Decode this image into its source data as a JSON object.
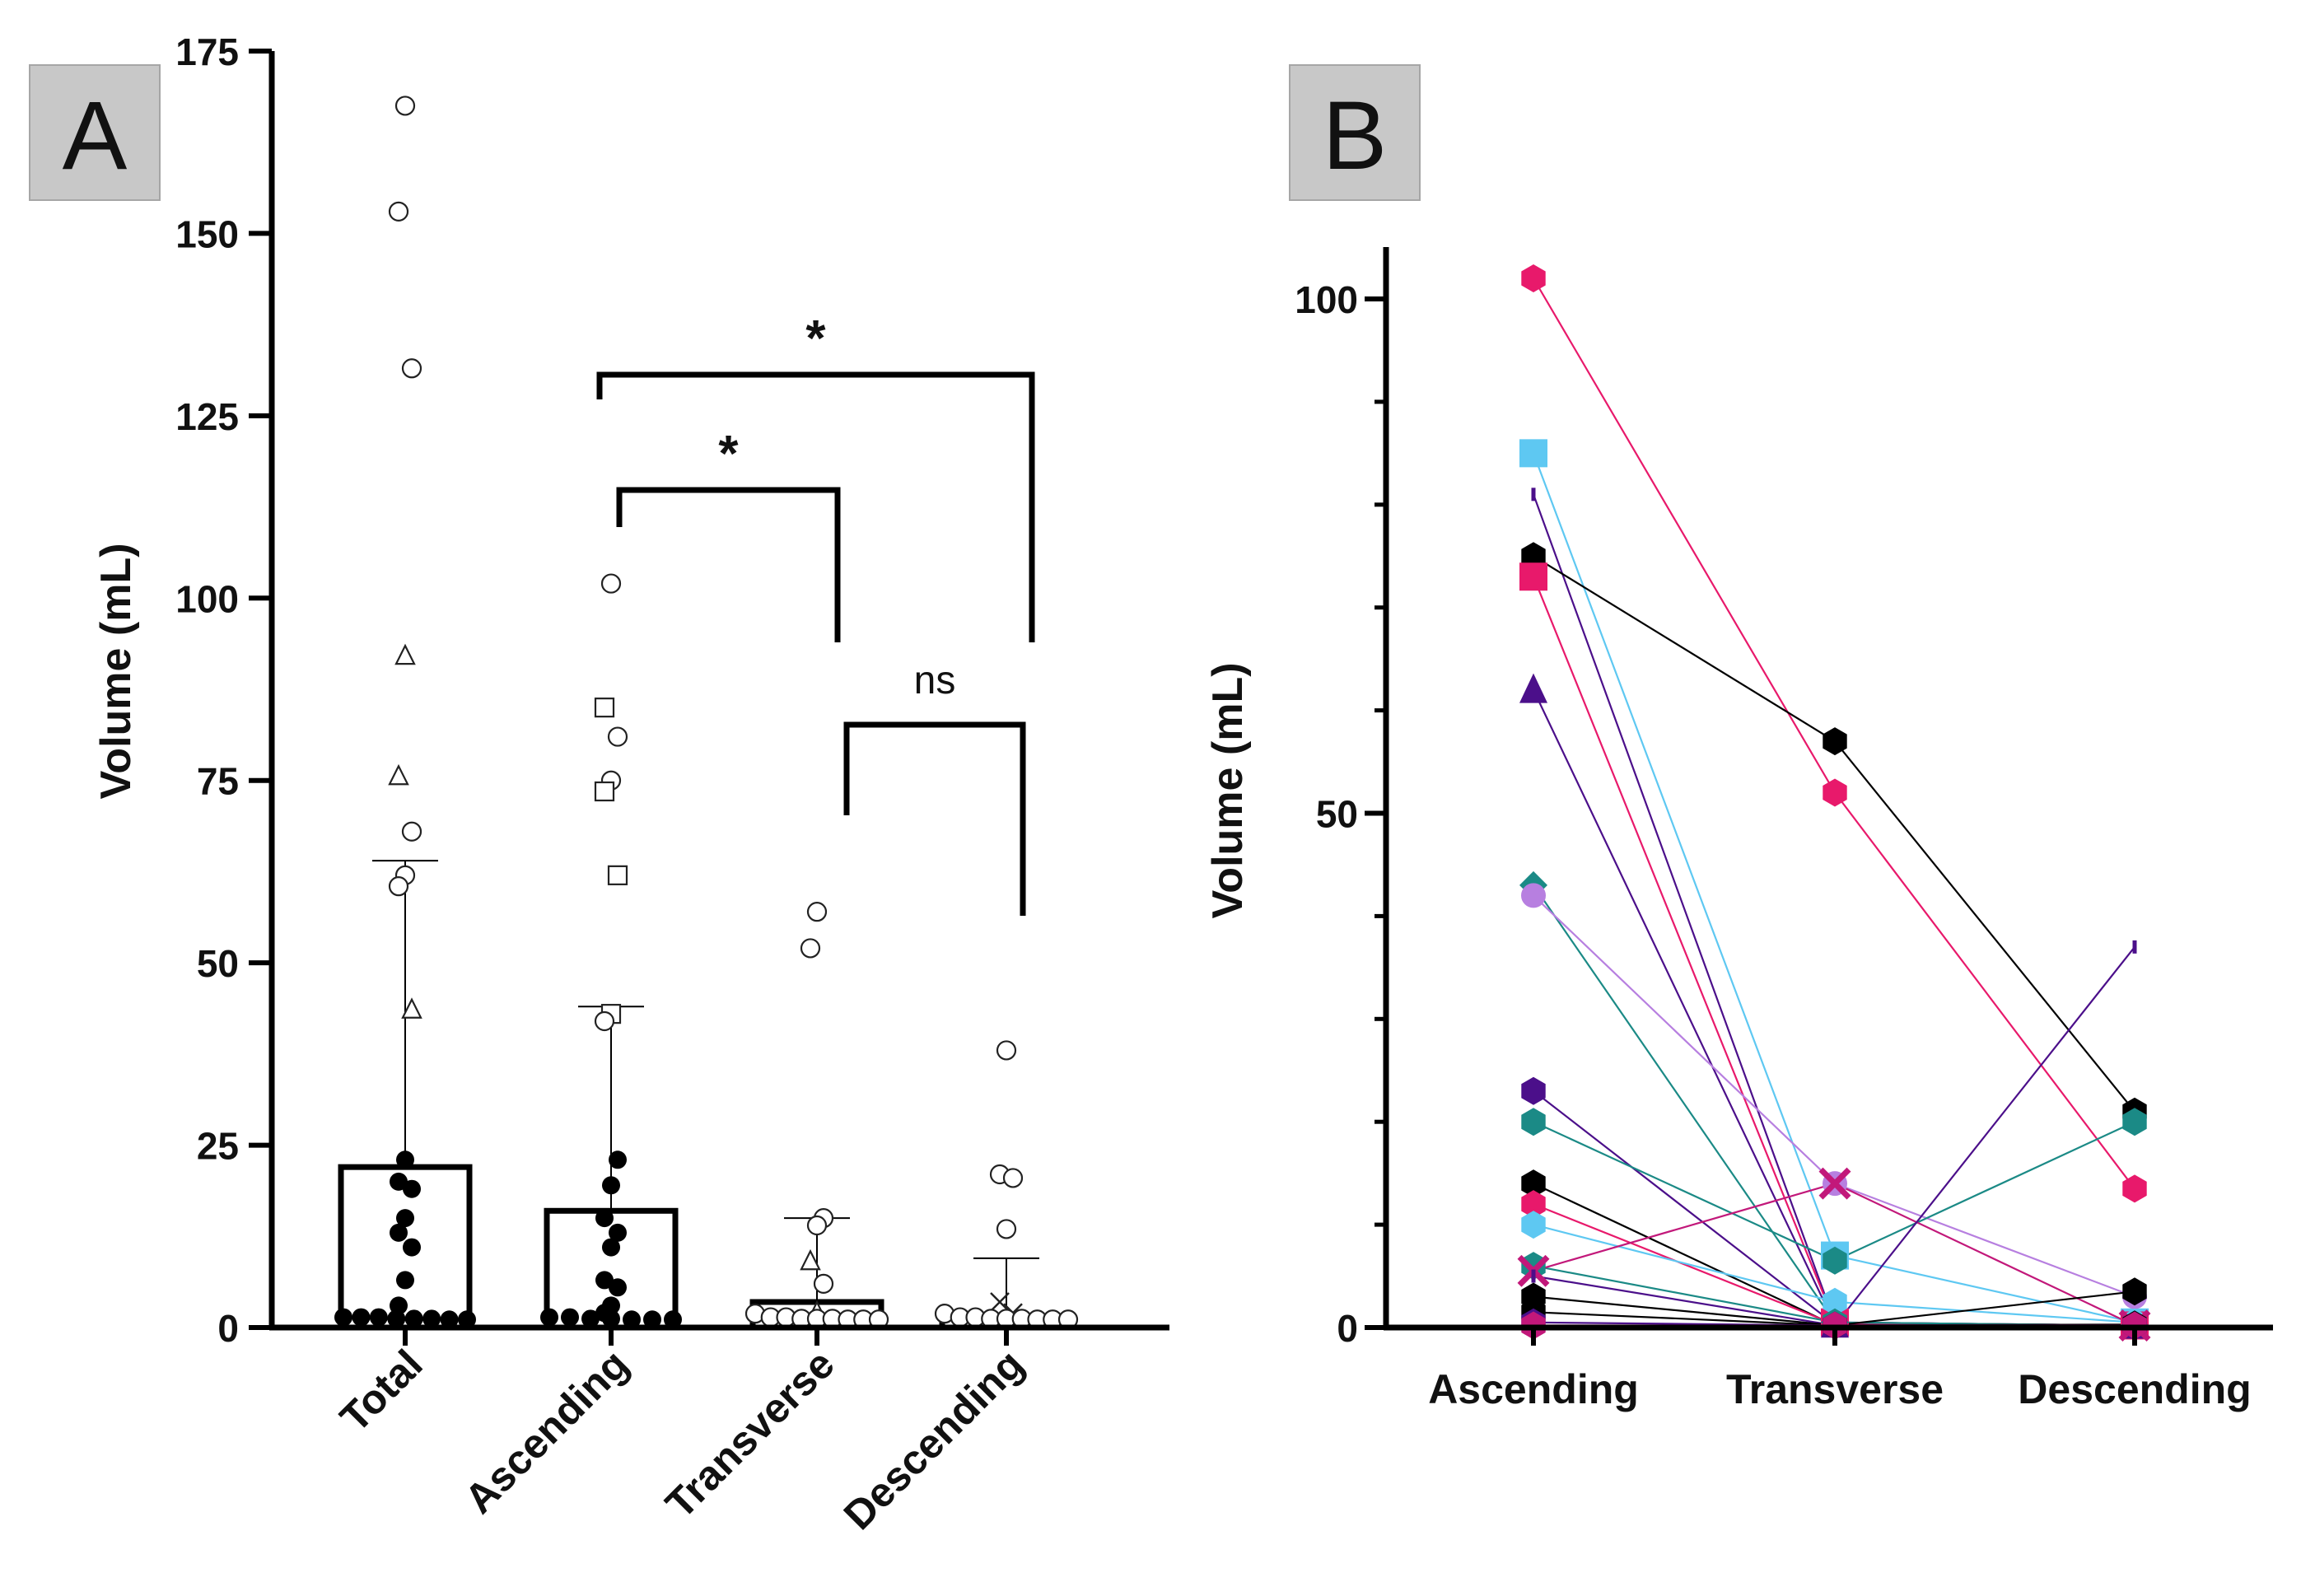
{
  "colors": {
    "axis": "#000000",
    "label_box": "#c8c8c8",
    "pink": "#e8196b",
    "light_blue": "#5ec8f2",
    "purple": "#4b0f8a",
    "teal": "#1b8a86",
    "black": "#000000",
    "violet": "#b77fe0",
    "magenta": "#c2187a"
  },
  "panels": {
    "a": {
      "label": "A"
    },
    "b": {
      "label": "B"
    }
  },
  "chart_data": [
    {
      "panel": "A",
      "type": "bar",
      "ylabel": "Volume (mL)",
      "ylim": [
        0,
        175
      ],
      "yticks": [
        "0",
        "25",
        "50",
        "75",
        "100",
        "125",
        "150",
        "175"
      ],
      "categories": [
        "Total",
        "Ascending",
        "Transverse",
        "Descending"
      ],
      "means": [
        22,
        16,
        3.5,
        1.5
      ],
      "sd_upper": [
        64,
        44,
        15,
        9.5
      ],
      "points": [
        [
          {
            "v": 167.5,
            "s": "circle"
          },
          {
            "v": 153,
            "s": "circle"
          },
          {
            "v": 131.5,
            "s": "circle"
          },
          {
            "v": 92,
            "s": "triangle"
          },
          {
            "v": 75.5,
            "s": "triangle"
          },
          {
            "v": 68,
            "s": "circle"
          },
          {
            "v": 62,
            "s": "circle"
          },
          {
            "v": 60.5,
            "s": "circle"
          },
          {
            "v": 43.5,
            "s": "triangle"
          },
          {
            "v": 23,
            "s": "dot"
          },
          {
            "v": 20,
            "s": "dot"
          },
          {
            "v": 19,
            "s": "dot"
          },
          {
            "v": 15,
            "s": "dot"
          },
          {
            "v": 13,
            "s": "dot"
          },
          {
            "v": 11,
            "s": "dot"
          },
          {
            "v": 6.5,
            "s": "dot"
          },
          {
            "v": 3,
            "s": "dot"
          },
          {
            "v": 0.5,
            "s": "dot"
          },
          {
            "v": 0.5,
            "s": "dot"
          },
          {
            "v": 0.5,
            "s": "dot"
          },
          {
            "v": 0.3,
            "s": "dot"
          },
          {
            "v": 0.3,
            "s": "dot"
          },
          {
            "v": 0.3,
            "s": "dot"
          },
          {
            "v": 0.2,
            "s": "dot"
          },
          {
            "v": 0.2,
            "s": "dot"
          }
        ],
        [
          {
            "v": 102,
            "s": "circle"
          },
          {
            "v": 85,
            "s": "square"
          },
          {
            "v": 81,
            "s": "circle"
          },
          {
            "v": 75,
            "s": "circle"
          },
          {
            "v": 73.5,
            "s": "square"
          },
          {
            "v": 62,
            "s": "square"
          },
          {
            "v": 43,
            "s": "square"
          },
          {
            "v": 42,
            "s": "circle"
          },
          {
            "v": 23,
            "s": "dot"
          },
          {
            "v": 19.5,
            "s": "dot"
          },
          {
            "v": 15,
            "s": "dot"
          },
          {
            "v": 13,
            "s": "dot"
          },
          {
            "v": 11,
            "s": "dot"
          },
          {
            "v": 6.5,
            "s": "dot"
          },
          {
            "v": 5.5,
            "s": "dot"
          },
          {
            "v": 3,
            "s": "dot"
          },
          {
            "v": 2,
            "s": "dot"
          },
          {
            "v": 0.5,
            "s": "dot"
          },
          {
            "v": 0.5,
            "s": "dot"
          },
          {
            "v": 0.3,
            "s": "dot"
          },
          {
            "v": 0.3,
            "s": "dot"
          },
          {
            "v": 0.2,
            "s": "dot"
          },
          {
            "v": 0.2,
            "s": "dot"
          },
          {
            "v": 0.2,
            "s": "dot"
          }
        ],
        [
          {
            "v": 57,
            "s": "circle"
          },
          {
            "v": 52,
            "s": "circle"
          },
          {
            "v": 15,
            "s": "circle"
          },
          {
            "v": 14,
            "s": "circle"
          },
          {
            "v": 9,
            "s": "triangle"
          },
          {
            "v": 6,
            "s": "circle"
          },
          {
            "v": 2,
            "s": "triangle"
          },
          {
            "v": 1,
            "s": "circle"
          },
          {
            "v": 0.5,
            "s": "circle"
          },
          {
            "v": 0.5,
            "s": "circle"
          },
          {
            "v": 0.3,
            "s": "circle"
          },
          {
            "v": 0.3,
            "s": "circle"
          },
          {
            "v": 0.3,
            "s": "circle"
          },
          {
            "v": 0.2,
            "s": "circle"
          },
          {
            "v": 0.2,
            "s": "circle"
          },
          {
            "v": 0.2,
            "s": "circle"
          }
        ],
        [
          {
            "v": 38,
            "s": "circle"
          },
          {
            "v": 21,
            "s": "circle"
          },
          {
            "v": 20.5,
            "s": "circle"
          },
          {
            "v": 13.5,
            "s": "circle"
          },
          {
            "v": 3.5,
            "s": "cross"
          },
          {
            "v": 2,
            "s": "cross"
          },
          {
            "v": 1,
            "s": "circle"
          },
          {
            "v": 0.5,
            "s": "circle"
          },
          {
            "v": 0.5,
            "s": "circle"
          },
          {
            "v": 0.3,
            "s": "circle"
          },
          {
            "v": 0.3,
            "s": "circle"
          },
          {
            "v": 0.3,
            "s": "circle"
          },
          {
            "v": 0.2,
            "s": "circle"
          },
          {
            "v": 0.2,
            "s": "circle"
          },
          {
            "v": 0.2,
            "s": "circle"
          }
        ]
      ],
      "significance": [
        {
          "from": "Ascending",
          "to": "Descending",
          "label": "*",
          "height": 130
        },
        {
          "from": "Ascending",
          "to": "Transverse",
          "label": "*",
          "height": 115
        },
        {
          "from": "Transverse",
          "to": "Descending",
          "label": "ns",
          "height": 83
        }
      ]
    },
    {
      "panel": "B",
      "type": "line",
      "ylabel": "Volume (mL)",
      "ylim": [
        0,
        105
      ],
      "yticks": [
        "0",
        "50",
        "100"
      ],
      "categories": [
        "Ascending",
        "Transverse",
        "Descending"
      ],
      "series": [
        {
          "color": "pink",
          "marker": "hexagon",
          "values": [
            102,
            52,
            13.5
          ]
        },
        {
          "color": "light_blue",
          "marker": "square",
          "values": [
            85,
            7,
            0.5
          ]
        },
        {
          "color": "purple",
          "marker": "tick",
          "values": [
            81,
            0.5,
            0.2
          ]
        },
        {
          "color": "black",
          "marker": "hexagon",
          "values": [
            75,
            57,
            21
          ]
        },
        {
          "color": "pink",
          "marker": "square",
          "values": [
            73,
            0.5,
            0.2
          ]
        },
        {
          "color": "purple",
          "marker": "triangle",
          "values": [
            62,
            0.3,
            0.2
          ]
        },
        {
          "color": "teal",
          "marker": "diamond",
          "values": [
            43,
            0.5,
            0.2
          ]
        },
        {
          "color": "violet",
          "marker": "circle",
          "values": [
            42,
            14,
            3
          ]
        },
        {
          "color": "purple",
          "marker": "hexagon",
          "values": [
            23,
            0.3,
            0.2
          ]
        },
        {
          "color": "teal",
          "marker": "hexagon",
          "values": [
            20,
            6.5,
            20
          ]
        },
        {
          "color": "black",
          "marker": "hexagon",
          "values": [
            14,
            0.2,
            0.2
          ]
        },
        {
          "color": "pink",
          "marker": "hexagon",
          "values": [
            12,
            0.3,
            0.2
          ]
        },
        {
          "color": "light_blue",
          "marker": "hexagon",
          "values": [
            10,
            2.5,
            0.5
          ]
        },
        {
          "color": "teal",
          "marker": "hexagon",
          "values": [
            6,
            0.5,
            0.2
          ]
        },
        {
          "color": "magenta",
          "marker": "cross",
          "values": [
            5.5,
            14,
            0.2
          ]
        },
        {
          "color": "purple",
          "marker": "tick",
          "values": [
            5,
            0.2,
            37
          ]
        },
        {
          "color": "black",
          "marker": "hexagon",
          "values": [
            3,
            0.2,
            3.5
          ]
        },
        {
          "color": "black",
          "marker": "hexagon",
          "values": [
            1.5,
            0.2,
            0.3
          ]
        },
        {
          "color": "purple",
          "marker": "hexagon",
          "values": [
            0.5,
            0.2,
            0.2
          ]
        },
        {
          "color": "magenta",
          "marker": "hexagon",
          "values": [
            0.2,
            0.2,
            0.2
          ]
        }
      ]
    }
  ]
}
